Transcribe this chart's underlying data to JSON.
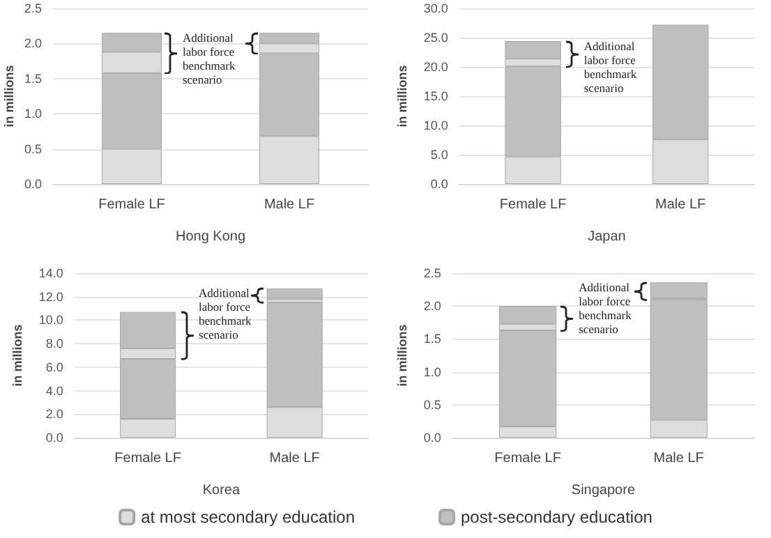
{
  "chart_data": [
    {
      "type": "bar",
      "stacked": true,
      "xlabel": "Hong Kong",
      "ylabel": "in millions",
      "categories": [
        "Female LF",
        "Male LF"
      ],
      "ylim": [
        0,
        2.5
      ],
      "yticks": [
        {
          "value": 0,
          "label": "0.0"
        },
        {
          "value": 0.5,
          "label": "0.5"
        },
        {
          "value": 1,
          "label": "1.0"
        },
        {
          "value": 1.5,
          "label": "1.5"
        },
        {
          "value": 2,
          "label": "2.0"
        },
        {
          "value": 2.5,
          "label": "2.5"
        }
      ],
      "grid": "y",
      "legend": "bottom",
      "annotations": [
        "Additional labor force benchmark scenario"
      ],
      "series": [
        {
          "name": "at most secondary education",
          "color": "#dedede",
          "values": [
            0.5,
            0.68
          ]
        },
        {
          "name": "post-secondary education",
          "color": "#bfbfbf",
          "values": [
            1.08,
            1.18
          ]
        },
        {
          "color": "#dedede",
          "values": [
            0.3,
            0.14
          ]
        },
        {
          "color": "#bfbfbf",
          "values": [
            0.27,
            0.15
          ]
        }
      ]
    },
    {
      "type": "bar",
      "stacked": true,
      "xlabel": "Japan",
      "ylabel": "in millions",
      "categories": [
        "Female LF",
        "Male LF"
      ],
      "ylim": [
        0,
        30
      ],
      "yticks": [
        {
          "value": 0,
          "label": "0.0"
        },
        {
          "value": 5,
          "label": "5.0"
        },
        {
          "value": 10,
          "label": "10.0"
        },
        {
          "value": 15,
          "label": "15.0"
        },
        {
          "value": 20,
          "label": "20.0"
        },
        {
          "value": 25,
          "label": "25.0"
        },
        {
          "value": 30,
          "label": "30.0"
        }
      ],
      "grid": "y",
      "annotations": [
        "Additional labor force benchmark scenario"
      ],
      "series": [
        {
          "color": "#dedede",
          "values": [
            4.7,
            7.6
          ]
        },
        {
          "color": "#bfbfbf",
          "values": [
            15.4,
            19.6
          ]
        },
        {
          "color": "#dedede",
          "values": [
            1.3,
            null
          ]
        },
        {
          "color": "#bfbfbf",
          "values": [
            3.0,
            null
          ]
        }
      ]
    },
    {
      "type": "bar",
      "stacked": true,
      "xlabel": "Korea",
      "ylabel": "in millions",
      "categories": [
        "Female LF",
        "Male LF"
      ],
      "ylim": [
        0,
        14
      ],
      "yticks": [
        {
          "value": 0,
          "label": "0.0"
        },
        {
          "value": 2,
          "label": "2.0"
        },
        {
          "value": 4,
          "label": "4.0"
        },
        {
          "value": 6,
          "label": "6.0"
        },
        {
          "value": 8,
          "label": "8.0"
        },
        {
          "value": 10,
          "label": "10.0"
        },
        {
          "value": 12,
          "label": "12.0"
        },
        {
          "value": 14,
          "label": "14.0"
        }
      ],
      "grid": "y",
      "annotations": [
        "Additional labor force benchmark scenario"
      ],
      "series": [
        {
          "color": "#dedede",
          "values": [
            1.6,
            2.6
          ]
        },
        {
          "color": "#bfbfbf",
          "values": [
            5.1,
            8.9
          ]
        },
        {
          "color": "#dedede",
          "values": [
            0.9,
            0.3
          ]
        },
        {
          "color": "#bfbfbf",
          "values": [
            3.1,
            0.9
          ]
        }
      ]
    },
    {
      "type": "bar",
      "stacked": true,
      "xlabel": "Singapore",
      "ylabel": "in millions",
      "categories": [
        "Female LF",
        "Male LF"
      ],
      "ylim": [
        0,
        2.5
      ],
      "yticks": [
        {
          "value": 0,
          "label": "0.0"
        },
        {
          "value": 0.5,
          "label": "0.5"
        },
        {
          "value": 1,
          "label": "1.0"
        },
        {
          "value": 1.5,
          "label": "1.5"
        },
        {
          "value": 2,
          "label": "2.0"
        },
        {
          "value": 2.5,
          "label": "2.5"
        }
      ],
      "grid": "y",
      "annotations": [
        "Additional labor force benchmark scenario"
      ],
      "series": [
        {
          "color": "#dedede",
          "values": [
            0.17,
            0.27
          ]
        },
        {
          "color": "#bfbfbf",
          "values": [
            1.46,
            1.83
          ]
        },
        {
          "color": "#dedede",
          "values": [
            0.1,
            0.02
          ]
        },
        {
          "color": "#bfbfbf",
          "values": [
            0.27,
            0.24
          ]
        }
      ]
    }
  ]
}
